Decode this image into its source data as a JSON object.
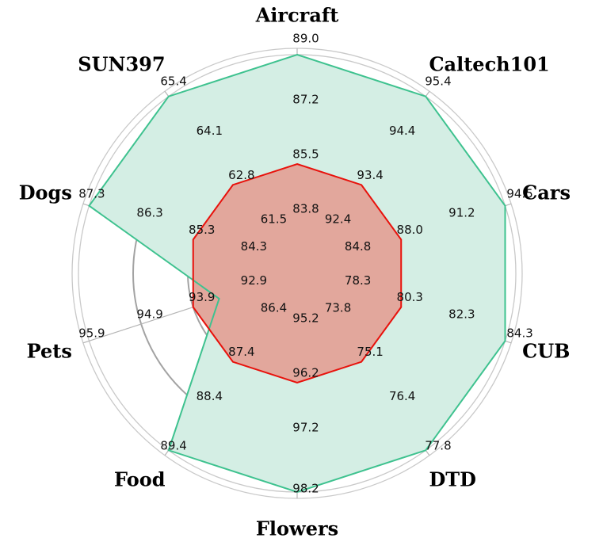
{
  "chart_data": {
    "type": "radar",
    "categories": [
      "Aircraft",
      "Caltech101",
      "Cars",
      "CUB",
      "DTD",
      "Flowers",
      "Food",
      "Pets",
      "Dogs",
      "SUN397"
    ],
    "tick_labels": [
      [
        "83.8",
        "85.5",
        "87.2",
        "89.0"
      ],
      [
        "92.4",
        "93.4",
        "94.4",
        "95.4"
      ],
      [
        "84.8",
        "88.0",
        "91.2",
        "94.5"
      ],
      [
        "78.3",
        "80.3",
        "82.3",
        "84.3"
      ],
      [
        "73.8",
        "75.1",
        "76.4",
        "77.8"
      ],
      [
        "95.2",
        "96.2",
        "97.2",
        "98.2"
      ],
      [
        "86.4",
        "87.4",
        "88.4",
        "89.4"
      ],
      [
        "92.9",
        "93.9",
        "94.9",
        "95.9"
      ],
      [
        "84.3",
        "85.3",
        "86.3",
        "87.3"
      ],
      [
        "61.5",
        "62.8",
        "64.1",
        "65.4"
      ]
    ],
    "series": [
      {
        "values": [
          89.0,
          95.4,
          94.5,
          84.3,
          77.8,
          98.2,
          89.4,
          93.4,
          87.3,
          65.4
        ],
        "color": "#3ec28f",
        "fill": "#d4eee4"
      },
      {
        "values": [
          85.5,
          93.4,
          88.0,
          80.3,
          75.1,
          96.2,
          87.4,
          93.9,
          85.3,
          62.8
        ],
        "color": "#e8120c",
        "fill": "#e2a79c"
      }
    ],
    "grid": true,
    "rings": 4
  }
}
